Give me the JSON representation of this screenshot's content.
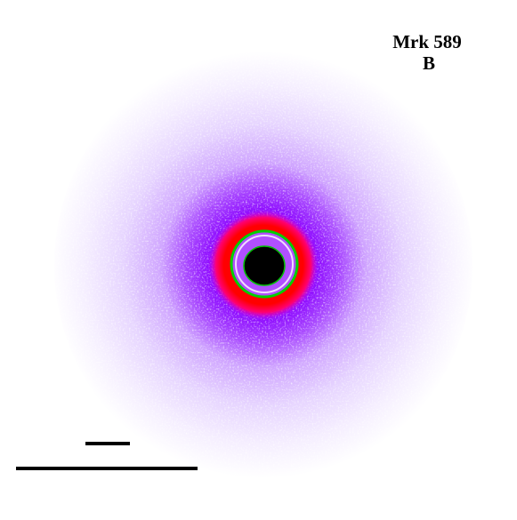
{
  "label": {
    "name": "Mrk 589",
    "band": "B"
  }
}
